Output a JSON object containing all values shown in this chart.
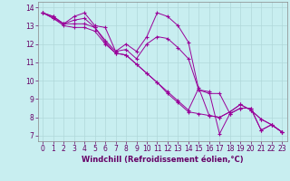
{
  "title": "",
  "xlabel": "Windchill (Refroidissement éolien,°C)",
  "ylabel": "",
  "bg_color": "#c8eef0",
  "line_color": "#990099",
  "grid_color": "#b0d8da",
  "xlim": [
    -0.5,
    23.5
  ],
  "ylim": [
    6.7,
    14.3
  ],
  "yticks": [
    7,
    8,
    9,
    10,
    11,
    12,
    13,
    14
  ],
  "xticks": [
    0,
    1,
    2,
    3,
    4,
    5,
    6,
    7,
    8,
    9,
    10,
    11,
    12,
    13,
    14,
    15,
    16,
    17,
    18,
    19,
    20,
    21,
    22,
    23
  ],
  "series": [
    [
      13.7,
      13.5,
      13.1,
      13.5,
      13.7,
      13.0,
      12.9,
      11.6,
      12.0,
      11.6,
      12.4,
      13.7,
      13.5,
      13.0,
      12.1,
      9.5,
      9.4,
      7.1,
      8.2,
      8.5,
      8.5,
      7.3,
      7.6,
      7.2
    ],
    [
      13.7,
      13.4,
      13.1,
      13.1,
      13.1,
      12.9,
      12.1,
      11.5,
      11.4,
      10.9,
      10.4,
      9.9,
      9.4,
      8.9,
      8.4,
      9.6,
      8.1,
      8.0,
      8.3,
      8.7,
      8.4,
      7.9,
      7.6,
      7.2
    ],
    [
      13.7,
      13.5,
      13.1,
      13.3,
      13.4,
      12.9,
      12.2,
      11.6,
      11.7,
      11.2,
      12.0,
      12.4,
      12.3,
      11.8,
      11.2,
      9.5,
      9.3,
      9.3,
      8.2,
      8.5,
      8.5,
      7.3,
      7.6,
      7.2
    ],
    [
      13.7,
      13.4,
      13.0,
      12.9,
      12.9,
      12.7,
      12.0,
      11.5,
      11.4,
      10.9,
      10.4,
      9.9,
      9.3,
      8.8,
      8.3,
      8.2,
      8.1,
      8.0,
      8.3,
      8.7,
      8.4,
      7.9,
      7.6,
      7.2
    ]
  ],
  "tick_fontsize": 5.5,
  "xlabel_fontsize": 6.0,
  "tick_color": "#660066",
  "xlabel_color": "#660066"
}
